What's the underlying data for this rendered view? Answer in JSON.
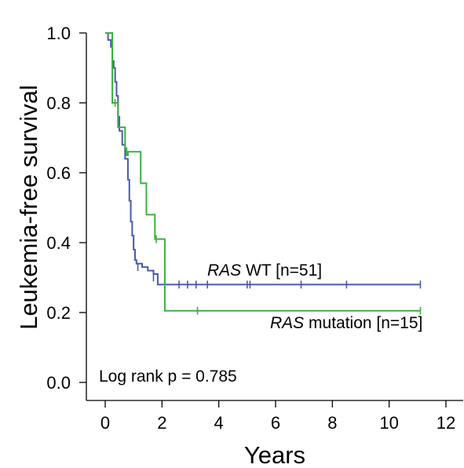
{
  "chart_data": {
    "type": "line",
    "subtype": "kaplan-meier",
    "xlabel": "Years",
    "ylabel": "Leukemia-free survival",
    "xlim": [
      0,
      12
    ],
    "ylim": [
      0,
      1.0
    ],
    "xticks": [
      "0",
      "2",
      "4",
      "6",
      "8",
      "10",
      "12"
    ],
    "yticks": [
      "0.0",
      "0.2",
      "0.4",
      "0.6",
      "0.8",
      "1.0"
    ],
    "grid": false,
    "annotation": "Log rank p = 0.785",
    "series": [
      {
        "name_italic": "RAS",
        "name_rest": " WT [n=51]",
        "color": "#4a5aa8",
        "steps": [
          [
            0,
            1.0
          ],
          [
            0.1,
            0.98
          ],
          [
            0.2,
            0.96
          ],
          [
            0.25,
            0.92
          ],
          [
            0.3,
            0.9
          ],
          [
            0.35,
            0.86
          ],
          [
            0.4,
            0.82
          ],
          [
            0.45,
            0.76
          ],
          [
            0.5,
            0.72
          ],
          [
            0.6,
            0.68
          ],
          [
            0.7,
            0.64
          ],
          [
            0.8,
            0.58
          ],
          [
            0.85,
            0.52
          ],
          [
            0.9,
            0.46
          ],
          [
            0.95,
            0.42
          ],
          [
            1.0,
            0.38
          ],
          [
            1.05,
            0.35
          ],
          [
            1.1,
            0.34
          ],
          [
            1.3,
            0.33
          ],
          [
            1.5,
            0.32
          ],
          [
            1.7,
            0.31
          ],
          [
            1.85,
            0.28
          ],
          [
            11.1,
            0.28
          ]
        ],
        "censored": [
          [
            0.25,
            0.92
          ],
          [
            0.45,
            0.74
          ],
          [
            1.0,
            0.4
          ],
          [
            1.15,
            0.33
          ],
          [
            1.7,
            0.3
          ],
          [
            2.6,
            0.28
          ],
          [
            2.9,
            0.28
          ],
          [
            3.2,
            0.28
          ],
          [
            3.6,
            0.28
          ],
          [
            5.0,
            0.28
          ],
          [
            5.1,
            0.28
          ],
          [
            6.9,
            0.28
          ],
          [
            8.5,
            0.28
          ],
          [
            11.1,
            0.28
          ]
        ]
      },
      {
        "name_italic": "RAS",
        "name_rest": " mutation [n=15]",
        "color": "#3cb043",
        "steps": [
          [
            0,
            1.0
          ],
          [
            0.25,
            0.8
          ],
          [
            0.45,
            0.73
          ],
          [
            0.7,
            0.67
          ],
          [
            0.75,
            0.65
          ],
          [
            0.8,
            0.66
          ],
          [
            1.25,
            0.57
          ],
          [
            1.45,
            0.48
          ],
          [
            1.75,
            0.41
          ],
          [
            2.1,
            0.205
          ],
          [
            11.1,
            0.205
          ]
        ],
        "censored": [
          [
            0.35,
            0.8
          ],
          [
            1.8,
            0.41
          ],
          [
            3.25,
            0.205
          ],
          [
            11.1,
            0.205
          ]
        ]
      }
    ]
  }
}
